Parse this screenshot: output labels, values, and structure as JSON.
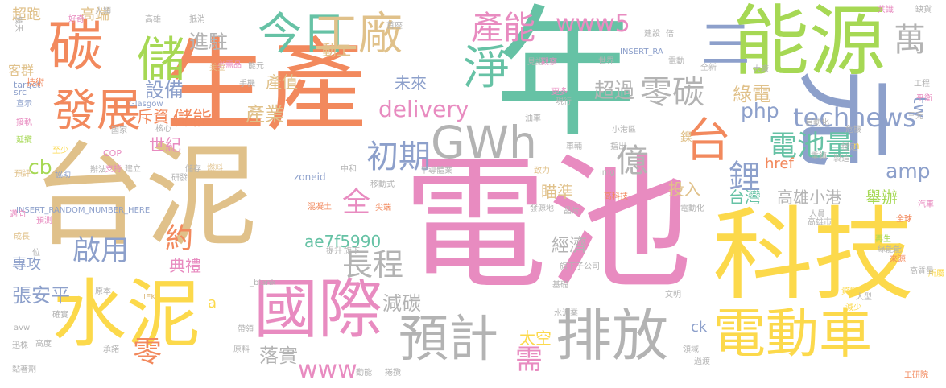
{
  "palette": {
    "tan": "#e0c18a",
    "pink": "#e88bc0",
    "orange": "#f2895d",
    "green": "#66c2a5",
    "lime": "#a6d854",
    "yellow": "#fcd94b",
    "blue": "#8da0cb",
    "gray": "#b3b3b3"
  },
  "words": [
    {
      "text": "電池",
      "color": "#e88bc0"
    },
    {
      "text": "台泥",
      "color": "#e0c18a"
    },
    {
      "text": "生產",
      "color": "#f2895d"
    },
    {
      "text": "年",
      "color": "#66c2a5"
    },
    {
      "text": "能源",
      "color": "#a6d854"
    },
    {
      "text": "元",
      "color": "#8da0cb"
    },
    {
      "text": "科技",
      "color": "#fcd94b"
    },
    {
      "text": "水泥",
      "color": "#fcd94b"
    },
    {
      "text": "電動車",
      "color": "#fcd94b"
    },
    {
      "text": "國際",
      "color": "#e88bc0"
    },
    {
      "text": "排放",
      "color": "#b3b3b3"
    },
    {
      "text": "預計",
      "color": "#b3b3b3"
    },
    {
      "text": "GWh",
      "color": "#b3b3b3"
    },
    {
      "text": "碳",
      "color": "#f2895d"
    },
    {
      "text": "發展",
      "color": "#f2895d"
    },
    {
      "text": "淨",
      "color": "#66c2a5"
    },
    {
      "text": "三",
      "color": "#8da0cb"
    },
    {
      "text": "儲",
      "color": "#a6d854"
    },
    {
      "text": "今日",
      "color": "#66c2a5"
    },
    {
      "text": "工廠",
      "color": "#e0c18a"
    },
    {
      "text": "產能",
      "color": "#e88bc0"
    },
    {
      "text": "零碳",
      "color": "#b3b3b3"
    },
    {
      "text": "technews",
      "color": "#8da0cb"
    },
    {
      "text": "台",
      "color": "#f2895d"
    },
    {
      "text": "www5",
      "color": "#e88bc0"
    },
    {
      "text": "億",
      "color": "#b3b3b3"
    },
    {
      "text": "初期",
      "color": "#8da0cb"
    },
    {
      "text": "鋰",
      "color": "#8da0cb"
    },
    {
      "text": "電池量",
      "color": "#66c2a5"
    },
    {
      "text": "萬",
      "color": "#b3b3b3"
    },
    {
      "text": "tw",
      "color": "#8da0cb"
    },
    {
      "text": "amp",
      "color": "#8da0cb"
    },
    {
      "text": "php",
      "color": "#8da0cb"
    },
    {
      "text": "delivery",
      "color": "#e88bc0"
    },
    {
      "text": "啟用",
      "color": "#8da0cb"
    },
    {
      "text": "長程",
      "color": "#b3b3b3"
    },
    {
      "text": "全",
      "color": "#e88bc0"
    },
    {
      "text": "約",
      "color": "#f2895d"
    },
    {
      "text": "cb",
      "color": "#a6d854"
    },
    {
      "text": "進駐",
      "color": "#b3b3b3"
    },
    {
      "text": "設備",
      "color": "#8da0cb"
    },
    {
      "text": "儲能",
      "color": "#f2895d"
    },
    {
      "text": "產業",
      "color": "#e0c18a"
    },
    {
      "text": "產值",
      "color": "#e0c18a"
    },
    {
      "text": "未來",
      "color": "#8da0cb"
    },
    {
      "text": "超過",
      "color": "#b3b3b3"
    },
    {
      "text": "綠電",
      "color": "#e0c18a"
    },
    {
      "text": "投入",
      "color": "#e0c18a"
    },
    {
      "text": "台灣",
      "color": "#66c2a5"
    },
    {
      "text": "高雄小港",
      "color": "#b3b3b3"
    },
    {
      "text": "舉辦",
      "color": "#a6d854"
    },
    {
      "text": "世紀",
      "color": "#e88bc0"
    },
    {
      "text": "斥資",
      "color": "#f2895d"
    },
    {
      "text": "經濟",
      "color": "#b3b3b3"
    },
    {
      "text": "減碳",
      "color": "#b3b3b3"
    },
    {
      "text": "ae7f5990",
      "color": "#66c2a5"
    },
    {
      "text": "瞄準",
      "color": "#e0c18a"
    },
    {
      "text": "www",
      "color": "#e88bc0"
    },
    {
      "text": "需",
      "color": "#e88bc0"
    },
    {
      "text": "太空",
      "color": "#fcd94b"
    },
    {
      "text": "落實",
      "color": "#b3b3b3"
    },
    {
      "text": "零",
      "color": "#f2895d"
    },
    {
      "text": "典禮",
      "color": "#e88bc0"
    },
    {
      "text": "專攻",
      "color": "#8da0cb"
    },
    {
      "text": "張安平",
      "color": "#8da0cb"
    },
    {
      "text": "客群",
      "color": "#e0c18a"
    },
    {
      "text": "超跑",
      "color": "#e0c18a"
    },
    {
      "text": "高端",
      "color": "#e0c18a"
    },
    {
      "text": "動工",
      "color": "#e0c18a"
    },
    {
      "text": "href",
      "color": "#f2895d"
    },
    {
      "text": "鎳",
      "color": "#e0c18a"
    },
    {
      "text": "n",
      "color": "#fcd94b"
    },
    {
      "text": "ck",
      "color": "#8da0cb"
    },
    {
      "text": "a",
      "color": "#fcd94b"
    },
    {
      "text": "zoneid",
      "color": "#8da0cb"
    },
    {
      "text": "INSERT_RANDOM_NUMBER_HERE",
      "color": "#8da0cb"
    },
    {
      "text": "Glasgow",
      "color": "#8da0cb"
    },
    {
      "text": "COP",
      "color": "#e88bc0"
    },
    {
      "text": "target",
      "color": "#8da0cb"
    },
    {
      "text": "src",
      "color": "#8da0cb"
    },
    {
      "text": "技術",
      "color": "#f2895d"
    },
    {
      "text": "宣示",
      "color": "#8da0cb"
    },
    {
      "text": "接軌",
      "color": "#e88bc0"
    },
    {
      "text": "延攬",
      "color": "#a6d854"
    },
    {
      "text": "國家",
      "color": "#b3b3b3"
    },
    {
      "text": "核心",
      "color": "#b3b3b3"
    },
    {
      "text": "至少",
      "color": "#fcd94b"
    },
    {
      "text": "預評",
      "color": "#e0c18a"
    },
    {
      "text": "協助",
      "color": "#8da0cb"
    },
    {
      "text": "辦法",
      "color": "#b3b3b3"
    },
    {
      "text": "支持",
      "color": "#e88bc0"
    },
    {
      "text": "建立",
      "color": "#b3b3b3"
    },
    {
      "text": "研發",
      "color": "#b3b3b3"
    },
    {
      "text": "燃料",
      "color": "#e0c18a"
    },
    {
      "text": "儲存",
      "color": "#b3b3b3"
    },
    {
      "text": "中和",
      "color": "#b3b3b3"
    },
    {
      "text": "移動式",
      "color": "#b3b3b3"
    },
    {
      "text": "半導體業",
      "color": "#b3b3b3"
    },
    {
      "text": "致力",
      "color": "#e0c18a"
    },
    {
      "text": "混凝土",
      "color": "#f2895d"
    },
    {
      "text": "尖端",
      "color": "#f2895d"
    },
    {
      "text": "發源地",
      "color": "#b3b3b3"
    },
    {
      "text": "晶片",
      "color": "#b3b3b3"
    },
    {
      "text": "高科技",
      "color": "#f2895d"
    },
    {
      "text": "電動化",
      "color": "#b3b3b3"
    },
    {
      "text": "人員",
      "color": "#b3b3b3"
    },
    {
      "text": "汽車",
      "color": "#e88bc0"
    },
    {
      "text": "全球",
      "color": "#f2895d"
    },
    {
      "text": "再生",
      "color": "#a6d854"
    },
    {
      "text": "綠能能",
      "color": "#b3b3b3"
    },
    {
      "text": "來源",
      "color": "#f2895d"
    },
    {
      "text": "所屬",
      "color": "#fcd94b"
    },
    {
      "text": "高質量",
      "color": "#b3b3b3"
    },
    {
      "text": "資料",
      "color": "#fcd94b"
    },
    {
      "text": "減少",
      "color": "#fcd94b"
    },
    {
      "text": "大型",
      "color": "#b3b3b3"
    },
    {
      "text": "文明",
      "color": "#b3b3b3"
    },
    {
      "text": "基礎",
      "color": "#b3b3b3"
    },
    {
      "text": "水泥業",
      "color": "#b3b3b3"
    },
    {
      "text": "旗下子公司",
      "color": "#b3b3b3"
    },
    {
      "text": "旗下",
      "color": "#b3b3b3"
    },
    {
      "text": "提升",
      "color": "#b3b3b3"
    },
    {
      "text": "IEK",
      "color": "#e0c18a"
    },
    {
      "text": "原本",
      "color": "#b3b3b3"
    },
    {
      "text": "帶領",
      "color": "#b3b3b3"
    },
    {
      "text": "原料",
      "color": "#b3b3b3"
    },
    {
      "text": "動能",
      "color": "#b3b3b3"
    },
    {
      "text": "捲攬",
      "color": "#b3b3b3"
    },
    {
      "text": "承諾",
      "color": "#b3b3b3"
    },
    {
      "text": "確實",
      "color": "#b3b3b3"
    },
    {
      "text": "avw",
      "color": "#b3b3b3"
    },
    {
      "text": "迅株",
      "color": "#b3b3b3"
    },
    {
      "text": "高度",
      "color": "#b3b3b3"
    },
    {
      "text": "黏著劑",
      "color": "#b3b3b3"
    },
    {
      "text": "工研院",
      "color": "#f2895d"
    },
    {
      "text": "高雄市",
      "color": "#b3b3b3"
    },
    {
      "text": "缺貨",
      "color": "#b3b3b3"
    },
    {
      "text": "共識",
      "color": "#e88bc0"
    },
    {
      "text": "工程",
      "color": "#b3b3b3"
    },
    {
      "text": "平衡",
      "color": "#e88bc0"
    },
    {
      "text": "三元",
      "color": "#b3b3b3"
    },
    {
      "text": "危機",
      "color": "#b3b3b3"
    },
    {
      "text": "穩定",
      "color": "#b3b3b3"
    },
    {
      "text": "製造",
      "color": "#b3b3b3"
    },
    {
      "text": "重鎮",
      "color": "#b3b3b3"
    },
    {
      "text": "自動化",
      "color": "#b3b3b3"
    },
    {
      "text": "指出",
      "color": "#b3b3b3"
    },
    {
      "text": "車輛",
      "color": "#b3b3b3"
    },
    {
      "text": "小港區",
      "color": "#b3b3b3"
    },
    {
      "text": "油車",
      "color": "#b3b3b3"
    },
    {
      "text": "見證",
      "color": "#b3b3b3"
    },
    {
      "text": "觀察",
      "color": "#e88bc0"
    },
    {
      "text": "現行",
      "color": "#b3b3b3"
    },
    {
      "text": "更多",
      "color": "#e88bc0"
    },
    {
      "text": "世界",
      "color": "#b3b3b3"
    },
    {
      "text": "電動",
      "color": "#b3b3b3"
    },
    {
      "text": "大廠",
      "color": "#b3b3b3"
    },
    {
      "text": "INSERT_RA",
      "color": "#8da0cb"
    },
    {
      "text": "建設",
      "color": "#b3b3b3"
    },
    {
      "text": "倍",
      "color": "#b3b3b3"
    },
    {
      "text": "必需品",
      "color": "#e88bc0"
    },
    {
      "text": "能元",
      "color": "#b3b3b3"
    },
    {
      "text": "手機",
      "color": "#b3b3b3"
    },
    {
      "text": "幾天",
      "color": "#b3b3b3"
    },
    {
      "text": "好奇",
      "color": "#e88bc0"
    },
    {
      "text": "人類",
      "color": "#b3b3b3"
    },
    {
      "text": "高雄",
      "color": "#b3b3b3"
    },
    {
      "text": "抵消",
      "color": "#b3b3b3"
    },
    {
      "text": "_blank",
      "color": "#b3b3b3"
    },
    {
      "text": "img",
      "color": "#b3b3b3"
    },
    {
      "text": "領域",
      "color": "#b3b3b3"
    },
    {
      "text": "過渡",
      "color": "#b3b3b3"
    },
    {
      "text": "預測",
      "color": "#e88bc0"
    },
    {
      "text": "邁向",
      "color": "#e88bc0"
    },
    {
      "text": "成長",
      "color": "#e0c18a"
    },
    {
      "text": "位",
      "color": "#b3b3b3"
    },
    {
      "text": "美金",
      "color": "#e0c18a"
    },
    {
      "text": "首座",
      "color": "#b3b3b3"
    },
    {
      "text": "全新",
      "color": "#b3b3b3"
    }
  ]
}
